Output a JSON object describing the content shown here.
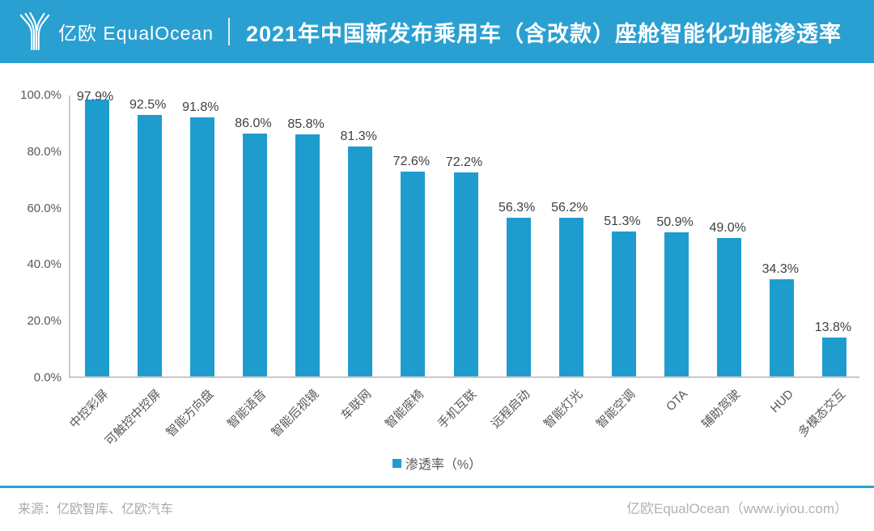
{
  "header": {
    "logo_text": "亿欧 EqualOcean",
    "title": "2021年中国新发布乘用车（含改款）座舱智能化功能渗透率"
  },
  "chart_data": {
    "type": "bar",
    "title": "2021年中国新发布乘用车（含改款）座舱智能化功能渗透率",
    "categories": [
      "中控彩屏",
      "可触控中控屏",
      "智能方向盘",
      "智能语音",
      "智能后视镜",
      "车联网",
      "智能座椅",
      "手机互联",
      "远程启动",
      "智能灯光",
      "智能空调",
      "OTA",
      "辅助驾驶",
      "HUD",
      "多模态交互"
    ],
    "values": [
      97.9,
      92.5,
      91.8,
      86.0,
      85.8,
      81.3,
      72.6,
      72.2,
      56.3,
      56.2,
      51.3,
      50.9,
      49.0,
      34.3,
      13.8
    ],
    "value_labels": [
      "97.9%",
      "92.5%",
      "91.8%",
      "86.0%",
      "85.8%",
      "81.3%",
      "72.6%",
      "72.2%",
      "56.3%",
      "56.2%",
      "51.3%",
      "50.9%",
      "49.0%",
      "34.3%",
      "13.8%"
    ],
    "xlabel": "",
    "ylabel": "",
    "ylim": [
      0,
      100
    ],
    "yticks": [
      {
        "label": "0.0%",
        "value": 0
      },
      {
        "label": "20.0%",
        "value": 20
      },
      {
        "label": "40.0%",
        "value": 40
      },
      {
        "label": "60.0%",
        "value": 60
      },
      {
        "label": "80.0%",
        "value": 80
      },
      {
        "label": "100.0%",
        "value": 100
      }
    ],
    "grid": false,
    "legend_position": "bottom",
    "legend": {
      "label": "渗透率（%）",
      "color": "#1f9cce"
    }
  },
  "footer": {
    "source": "来源：亿欧智库、亿欧汽车",
    "site": "亿欧EqualOcean（www.iyiou.com）"
  },
  "colors": {
    "header_bg": "#2aa0d2",
    "bar": "#1f9cce",
    "accent_line": "#2aa0d2"
  }
}
